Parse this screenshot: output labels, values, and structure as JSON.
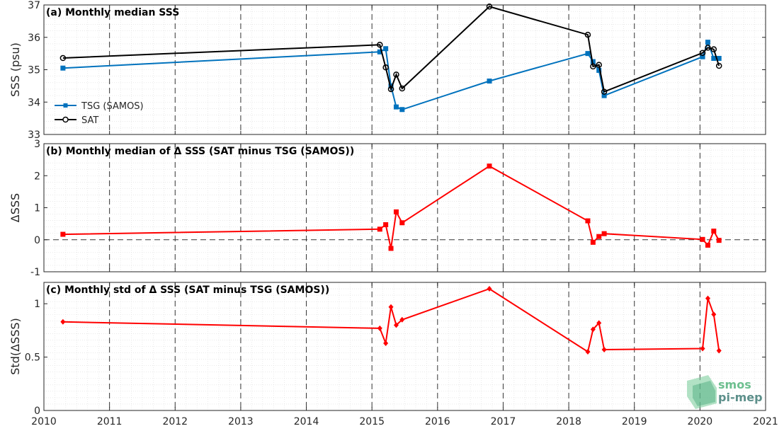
{
  "chart_data": [
    {
      "type": "line",
      "title": "(a) Monthly median SSS",
      "ylabel": "SSS (psu)",
      "xlim": [
        2010,
        2021
      ],
      "ylim": [
        33,
        37
      ],
      "yticks": [
        33,
        34,
        35,
        36,
        37
      ],
      "grid": "minor-dotted, major-year-dashed",
      "legend_position": "lower-left",
      "series": [
        {
          "name": "TSG (SAMOS)",
          "color": "#0072bd",
          "marker": "square-filled",
          "x": [
            2010.29,
            2015.12,
            2015.21,
            2015.29,
            2015.37,
            2015.46,
            2016.79,
            2018.29,
            2018.37,
            2018.46,
            2018.54,
            2020.04,
            2020.12,
            2020.21,
            2020.29
          ],
          "y": [
            35.05,
            35.55,
            35.65,
            34.5,
            33.85,
            33.77,
            34.65,
            35.5,
            35.25,
            34.98,
            34.2,
            35.4,
            35.85,
            35.35,
            35.35
          ]
        },
        {
          "name": "SAT",
          "color": "#000000",
          "marker": "circle-open",
          "x": [
            2010.29,
            2015.12,
            2015.21,
            2015.29,
            2015.37,
            2015.46,
            2016.79,
            2018.29,
            2018.37,
            2018.46,
            2018.54,
            2020.04,
            2020.12,
            2020.21,
            2020.29
          ],
          "y": [
            35.36,
            35.77,
            35.07,
            34.4,
            34.85,
            34.42,
            36.95,
            36.08,
            35.1,
            35.15,
            34.32,
            35.52,
            35.68,
            35.63,
            35.12
          ]
        }
      ]
    },
    {
      "type": "line",
      "title": "(b) Monthly median of Δ SSS (SAT minus TSG (SAMOS))",
      "ylabel": "ΔSSS",
      "xlim": [
        2010,
        2021
      ],
      "ylim": [
        -1,
        3
      ],
      "yticks": [
        -1,
        0,
        1,
        2,
        3
      ],
      "zero_line": true,
      "series": [
        {
          "color": "#ff0000",
          "marker": "square-filled",
          "x": [
            2010.29,
            2015.12,
            2015.21,
            2015.29,
            2015.37,
            2015.46,
            2016.79,
            2018.29,
            2018.37,
            2018.46,
            2018.54,
            2020.04,
            2020.12,
            2020.21,
            2020.29
          ],
          "y": [
            0.17,
            0.33,
            0.47,
            -0.27,
            0.87,
            0.53,
            2.3,
            0.59,
            -0.08,
            0.1,
            0.19,
            0.01,
            -0.17,
            0.27,
            -0.02
          ]
        }
      ]
    },
    {
      "type": "line",
      "title": "(c) Monthly std of Δ SSS (SAT minus TSG (SAMOS))",
      "ylabel": "Std(ΔSSS)",
      "xlim": [
        2010,
        2021
      ],
      "ylim": [
        0,
        1.2
      ],
      "yticks": [
        0,
        0.5,
        1
      ],
      "xticks": [
        2010,
        2011,
        2012,
        2013,
        2014,
        2015,
        2016,
        2017,
        2018,
        2019,
        2020,
        2021
      ],
      "series": [
        {
          "color": "#ff0000",
          "marker": "diamond-filled",
          "x": [
            2010.29,
            2015.12,
            2015.21,
            2015.29,
            2015.37,
            2015.46,
            2016.79,
            2018.29,
            2018.37,
            2018.46,
            2018.54,
            2020.04,
            2020.12,
            2020.21,
            2020.29
          ],
          "y": [
            0.83,
            0.77,
            0.63,
            0.97,
            0.8,
            0.85,
            1.14,
            0.55,
            0.76,
            0.82,
            0.57,
            0.58,
            1.05,
            0.9,
            0.56
          ]
        }
      ]
    }
  ],
  "logo": {
    "line1": "smos",
    "line2": "pi-mep"
  }
}
